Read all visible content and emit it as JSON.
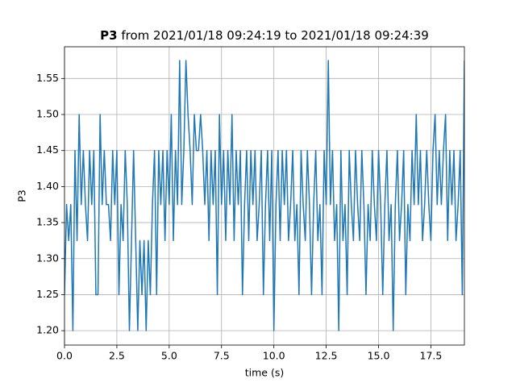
{
  "chart_data": {
    "type": "line",
    "title": {
      "bold": "P3",
      "rest": "from 2021/01/18 09:24:19 to 2021/01/18 09:24:39"
    },
    "xlabel": "time (s)",
    "ylabel": "P3",
    "color": "#1f77b4",
    "grid": true,
    "xlim": [
      0,
      19.1
    ],
    "ylim": [
      1.18,
      1.594
    ],
    "xticks": [
      {
        "value": 0,
        "label": "0.0"
      },
      2.5,
      {
        "value": 5,
        "label": "5.0"
      },
      7.5,
      {
        "value": 10,
        "label": "10.0"
      },
      12.5,
      {
        "value": 15,
        "label": "15.0"
      },
      17.5
    ],
    "yticks": [
      {
        "value": 1.2,
        "label": "1.20"
      },
      1.25,
      {
        "value": 1.3,
        "label": "1.30"
      },
      1.35,
      {
        "value": 1.4,
        "label": "1.40"
      },
      1.45,
      {
        "value": 1.5,
        "label": "1.50"
      },
      1.55
    ],
    "x": [
      0,
      0.1,
      0.2,
      0.3,
      0.4,
      0.5,
      0.6,
      0.7,
      0.8,
      0.9,
      1,
      1.1,
      1.2,
      1.3,
      1.4,
      1.5,
      1.6,
      1.7,
      1.8,
      1.9,
      2,
      2.1,
      2.2,
      2.3,
      2.4,
      2.5,
      2.6,
      2.7,
      2.8,
      2.9,
      3,
      3.1,
      3.2,
      3.3,
      3.4,
      3.5,
      3.6,
      3.7,
      3.8,
      3.9,
      4,
      4.1,
      4.2,
      4.3,
      4.4,
      4.5,
      4.6,
      4.7,
      4.8,
      4.9,
      5,
      5.1,
      5.2,
      5.3,
      5.4,
      5.5,
      5.6,
      5.7,
      5.8,
      5.9,
      6,
      6.1,
      6.2,
      6.3,
      6.4,
      6.5,
      6.6,
      6.7,
      6.8,
      6.9,
      7,
      7.1,
      7.2,
      7.3,
      7.4,
      7.5,
      7.6,
      7.7,
      7.8,
      7.9,
      8,
      8.1,
      8.2,
      8.3,
      8.4,
      8.5,
      8.6,
      8.7,
      8.8,
      8.9,
      9,
      9.1,
      9.2,
      9.3,
      9.4,
      9.5,
      9.6,
      9.7,
      9.8,
      9.9,
      10,
      10.1,
      10.2,
      10.3,
      10.4,
      10.5,
      10.6,
      10.7,
      10.8,
      10.9,
      11,
      11.1,
      11.2,
      11.3,
      11.4,
      11.5,
      11.6,
      11.7,
      11.8,
      11.9,
      12,
      12.1,
      12.2,
      12.3,
      12.4,
      12.5,
      12.6,
      12.7,
      12.8,
      12.9,
      13,
      13.1,
      13.2,
      13.3,
      13.4,
      13.5,
      13.6,
      13.7,
      13.8,
      13.9,
      14,
      14.1,
      14.2,
      14.3,
      14.4,
      14.5,
      14.6,
      14.7,
      14.8,
      14.9,
      15,
      15.1,
      15.2,
      15.3,
      15.4,
      15.5,
      15.6,
      15.7,
      15.8,
      15.9,
      16,
      16.1,
      16.2,
      16.3,
      16.4,
      16.5,
      16.6,
      16.7,
      16.8,
      16.9,
      17,
      17.1,
      17.2,
      17.3,
      17.4,
      17.5,
      17.6,
      17.7,
      17.8,
      17.9,
      18,
      18.1,
      18.2,
      18.3,
      18.4,
      18.5,
      18.6,
      18.7,
      18.8,
      18.9,
      19,
      19.1
    ],
    "values": [
      1.25,
      1.375,
      1.325,
      1.375,
      1.2,
      1.45,
      1.325,
      1.5,
      1.375,
      1.45,
      1.375,
      1.325,
      1.45,
      1.375,
      1.45,
      1.25,
      1.25,
      1.5,
      1.375,
      1.45,
      1.375,
      1.375,
      1.325,
      1.45,
      1.375,
      1.45,
      1.25,
      1.375,
      1.325,
      1.45,
      1.375,
      1.2,
      1.325,
      1.45,
      1.325,
      1.2,
      1.325,
      1.25,
      1.325,
      1.2,
      1.325,
      1.25,
      1.375,
      1.45,
      1.25,
      1.45,
      1.375,
      1.45,
      1.325,
      1.45,
      1.375,
      1.5,
      1.325,
      1.45,
      1.375,
      1.575,
      1.375,
      1.45,
      1.575,
      1.5,
      1.45,
      1.375,
      1.5,
      1.45,
      1.45,
      1.5,
      1.45,
      1.375,
      1.45,
      1.325,
      1.45,
      1.375,
      1.45,
      1.25,
      1.5,
      1.375,
      1.45,
      1.325,
      1.45,
      1.375,
      1.5,
      1.325,
      1.45,
      1.375,
      1.45,
      1.25,
      1.375,
      1.45,
      1.325,
      1.45,
      1.375,
      1.45,
      1.325,
      1.375,
      1.45,
      1.25,
      1.375,
      1.45,
      1.325,
      1.45,
      1.2,
      1.375,
      1.45,
      1.325,
      1.45,
      1.375,
      1.45,
      1.325,
      1.375,
      1.45,
      1.325,
      1.375,
      1.25,
      1.45,
      1.375,
      1.325,
      1.45,
      1.375,
      1.25,
      1.375,
      1.45,
      1.325,
      1.375,
      1.25,
      1.45,
      1.375,
      1.575,
      1.375,
      1.45,
      1.325,
      1.375,
      1.2,
      1.45,
      1.325,
      1.375,
      1.25,
      1.45,
      1.375,
      1.325,
      1.45,
      1.375,
      1.325,
      1.45,
      1.375,
      1.25,
      1.375,
      1.325,
      1.45,
      1.375,
      1.325,
      1.45,
      1.375,
      1.25,
      1.375,
      1.45,
      1.325,
      1.375,
      1.2,
      1.375,
      1.45,
      1.325,
      1.375,
      1.45,
      1.25,
      1.375,
      1.325,
      1.45,
      1.375,
      1.5,
      1.375,
      1.45,
      1.325,
      1.375,
      1.45,
      1.375,
      1.325,
      1.45,
      1.5,
      1.375,
      1.45,
      1.375,
      1.45,
      1.5,
      1.325,
      1.45,
      1.375,
      1.45,
      1.325,
      1.375,
      1.45,
      1.25,
      1.575
    ]
  }
}
